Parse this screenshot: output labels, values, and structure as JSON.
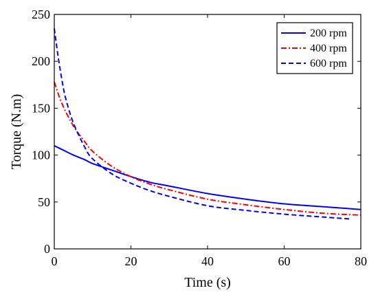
{
  "chart_data": {
    "type": "line",
    "title": "",
    "xlabel": "Time (s)",
    "ylabel": "Torque (N.m)",
    "xlim": [
      0,
      80
    ],
    "ylim": [
      0,
      250
    ],
    "xticks": [
      0,
      20,
      40,
      60,
      80
    ],
    "yticks": [
      0,
      50,
      100,
      150,
      200,
      250
    ],
    "grid": false,
    "legend_position": "top-right",
    "series": [
      {
        "name": "200 rpm",
        "style": "solid",
        "color": "#0000ff",
        "x": [
          0,
          2,
          5,
          8,
          10,
          15,
          20,
          25,
          30,
          40,
          50,
          60,
          70,
          80
        ],
        "y": [
          110,
          106,
          100,
          95,
          91,
          84,
          77,
          71,
          67,
          59,
          53,
          48,
          45,
          42
        ]
      },
      {
        "name": "400 rpm",
        "style": "dashdot",
        "color": "#ff0000",
        "x": [
          0,
          2,
          5,
          8,
          10,
          15,
          20,
          25,
          30,
          40,
          50,
          60,
          70,
          80
        ],
        "y": [
          178,
          155,
          131,
          114,
          104,
          88,
          77,
          69,
          63,
          53,
          47,
          42,
          38,
          36
        ]
      },
      {
        "name": "600 rpm",
        "style": "dashed",
        "color": "#0000ff",
        "x": [
          0,
          1,
          2,
          3,
          5,
          8,
          10,
          15,
          20,
          25,
          30,
          40,
          50,
          60,
          70,
          77
        ],
        "y": [
          235,
          205,
          180,
          160,
          134,
          108,
          96,
          80,
          70,
          62,
          56,
          46,
          41,
          37,
          34,
          32
        ]
      }
    ]
  }
}
